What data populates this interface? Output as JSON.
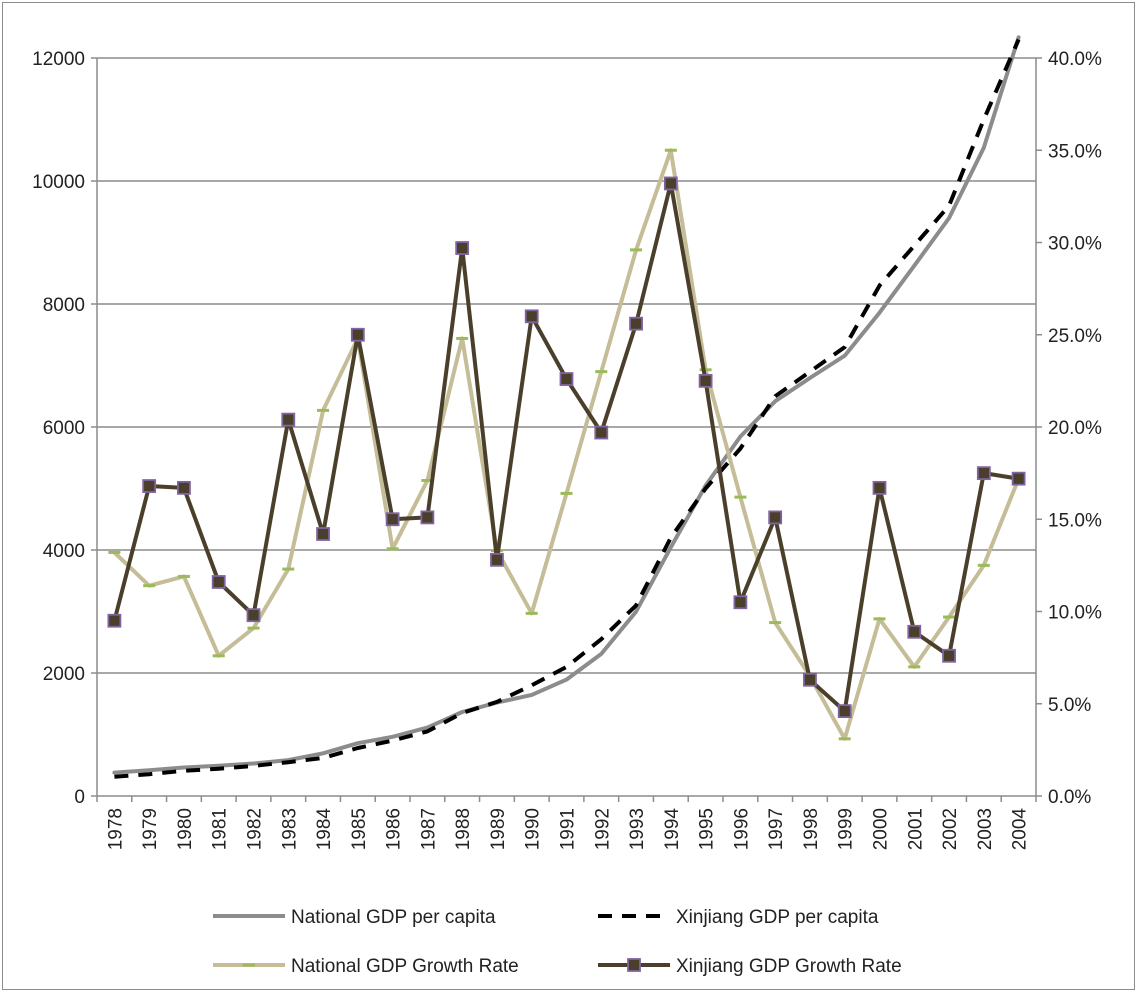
{
  "chart_data": {
    "type": "line",
    "categories": [
      "1978",
      "1979",
      "1980",
      "1981",
      "1982",
      "1983",
      "1984",
      "1985",
      "1986",
      "1987",
      "1988",
      "1989",
      "1990",
      "1991",
      "1992",
      "1993",
      "1994",
      "1995",
      "1996",
      "1997",
      "1998",
      "1999",
      "2000",
      "2001",
      "2002",
      "2003",
      "2004"
    ],
    "y_left": {
      "range": [
        0,
        12000
      ],
      "ticks": [
        "0",
        "2000",
        "4000",
        "6000",
        "8000",
        "10000",
        "12000"
      ]
    },
    "y_right": {
      "range": [
        0,
        40
      ],
      "ticks": [
        "0.0%",
        "5.0%",
        "10.0%",
        "15.0%",
        "20.0%",
        "25.0%",
        "30.0%",
        "35.0%",
        "40.0%"
      ]
    },
    "grid": true,
    "legend_position": "bottom",
    "series": [
      {
        "name": "National GDP per capita",
        "axis": "left",
        "style": "solid",
        "color": "#8c8c8c",
        "values": [
          381,
          419,
          463,
          492,
          528,
          583,
          695,
          858,
          963,
          1112,
          1366,
          1519,
          1644,
          1893,
          2311,
          2998,
          4044,
          5046,
          5846,
          6420,
          6796,
          7159,
          7858,
          8622,
          9398,
          10542,
          12336
        ]
      },
      {
        "name": "Xinjiang GDP per capita",
        "axis": "left",
        "style": "dashed",
        "color": "#000000",
        "values": [
          313,
          355,
          410,
          444,
          490,
          550,
          620,
          780,
          900,
          1050,
          1350,
          1530,
          1800,
          2100,
          2550,
          3100,
          4200,
          5000,
          5650,
          6500,
          6900,
          7300,
          8300,
          8950,
          9600,
          11000,
          12300
        ]
      },
      {
        "name": "National GDP Growth Rate",
        "axis": "right",
        "style": "solid",
        "color": "#c4bd97",
        "marker_color": "#9bbb59",
        "values": [
          13.2,
          11.4,
          11.9,
          7.6,
          9.1,
          12.3,
          20.9,
          24.8,
          13.4,
          17.1,
          24.8,
          13.3,
          9.9,
          16.4,
          23.0,
          29.6,
          35.0,
          23.1,
          16.2,
          9.4,
          6.5,
          3.1,
          9.6,
          7.0,
          9.7,
          12.5,
          17.2
        ]
      },
      {
        "name": "Xinjiang GDP Growth Rate",
        "axis": "right",
        "style": "solid",
        "color": "#4a3f2a",
        "marker_color": "#8064a2",
        "values": [
          9.5,
          16.8,
          16.7,
          11.6,
          9.8,
          20.4,
          14.2,
          25.0,
          15.0,
          15.1,
          29.7,
          12.8,
          26.0,
          22.6,
          19.7,
          25.6,
          33.2,
          22.5,
          10.5,
          15.1,
          6.3,
          4.6,
          16.7,
          8.9,
          7.6,
          17.5,
          17.2
        ]
      }
    ]
  }
}
